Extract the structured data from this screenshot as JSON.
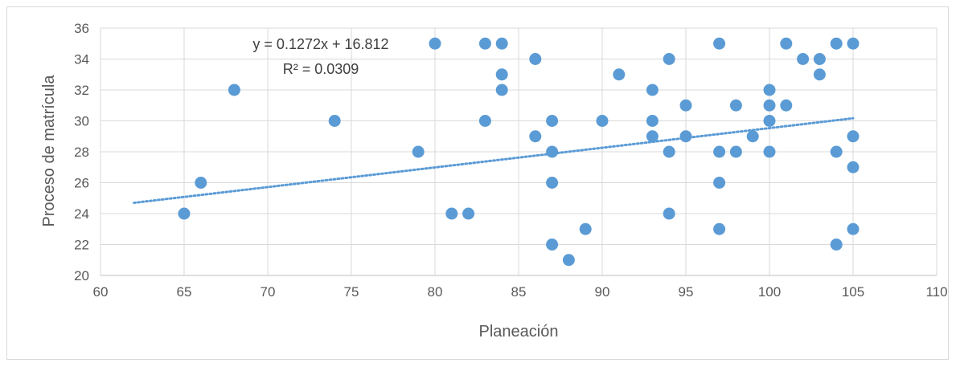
{
  "chart_data": {
    "type": "scatter",
    "title": "",
    "xlabel": "Planeación",
    "ylabel": "Proceso de matrícula",
    "xlim": [
      60,
      110
    ],
    "ylim": [
      20,
      36
    ],
    "x_ticks": [
      "60",
      "65",
      "70",
      "75",
      "80",
      "85",
      "90",
      "95",
      "100",
      "105",
      "110"
    ],
    "y_ticks": [
      "20",
      "22",
      "24",
      "26",
      "28",
      "30",
      "32",
      "34",
      "36"
    ],
    "grid": "major",
    "legend": "none",
    "colors": {
      "points": "#5b9bd5",
      "trendline": "#5b9bd5",
      "grid": "#d9d9d9",
      "text": "#595959"
    },
    "series": [
      {
        "points": [
          [
            65,
            24
          ],
          [
            66,
            26
          ],
          [
            68,
            32
          ],
          [
            74,
            30
          ],
          [
            79,
            28
          ],
          [
            80,
            35
          ],
          [
            81,
            24
          ],
          [
            82,
            24
          ],
          [
            83,
            35
          ],
          [
            83,
            30
          ],
          [
            84,
            35
          ],
          [
            84,
            33
          ],
          [
            84,
            32
          ],
          [
            86,
            34
          ],
          [
            86,
            29
          ],
          [
            87,
            30
          ],
          [
            87,
            28
          ],
          [
            87,
            26
          ],
          [
            87,
            22
          ],
          [
            88,
            21
          ],
          [
            89,
            23
          ],
          [
            90,
            30
          ],
          [
            91,
            33
          ],
          [
            93,
            32
          ],
          [
            93,
            30
          ],
          [
            93,
            29
          ],
          [
            94,
            34
          ],
          [
            94,
            28
          ],
          [
            94,
            24
          ],
          [
            95,
            31
          ],
          [
            95,
            29
          ],
          [
            97,
            35
          ],
          [
            97,
            28
          ],
          [
            97,
            26
          ],
          [
            97,
            23
          ],
          [
            98,
            31
          ],
          [
            98,
            28
          ],
          [
            99,
            29
          ],
          [
            100,
            32
          ],
          [
            100,
            31
          ],
          [
            100,
            30
          ],
          [
            100,
            28
          ],
          [
            101,
            35
          ],
          [
            101,
            31
          ],
          [
            102,
            34
          ],
          [
            103,
            34
          ],
          [
            103,
            33
          ],
          [
            104,
            35
          ],
          [
            104,
            28
          ],
          [
            104,
            22
          ],
          [
            105,
            35
          ],
          [
            105,
            29
          ],
          [
            105,
            27
          ],
          [
            105,
            23
          ]
        ]
      }
    ],
    "trendline": {
      "type": "linear",
      "slope": 0.1272,
      "intercept": 16.812,
      "x_range": [
        62,
        105
      ],
      "equation": "y = 0.1272x + 16.812",
      "r_squared": "R² = 0.0309"
    }
  }
}
